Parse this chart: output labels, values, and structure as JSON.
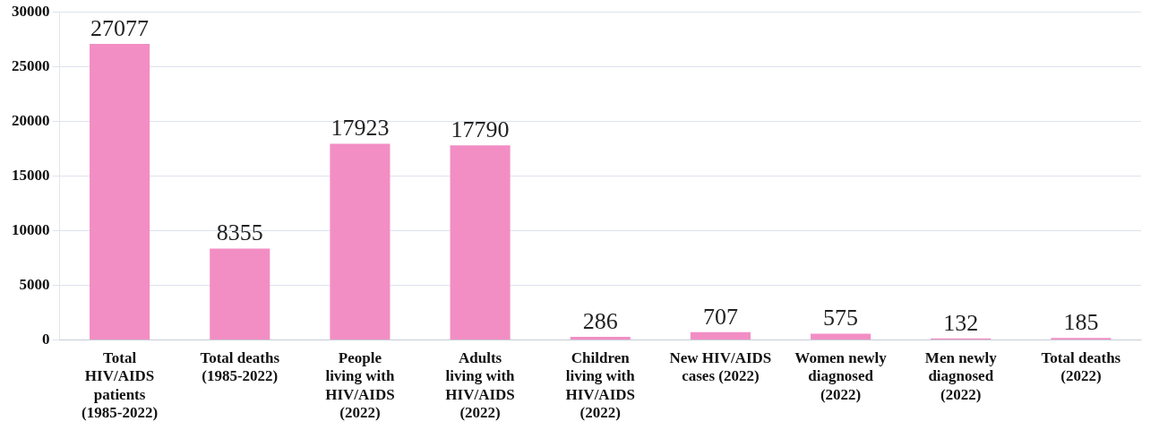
{
  "chart_data": {
    "type": "bar",
    "categories": [
      "Total HIV/AIDS patients (1985-2022)",
      "Total deaths (1985-2022)",
      "People living with HIV/AIDS (2022)",
      "Adults living with HIV/AIDS (2022)",
      "Children living with HIV/AIDS (2022)",
      "New HIV/AIDS cases (2022)",
      "Women newly diagnosed (2022)",
      "Men newly diagnosed (2022)",
      "Total deaths (2022)"
    ],
    "values": [
      27077,
      8355,
      17923,
      17790,
      286,
      707,
      575,
      132,
      185
    ],
    "color": "#f28ec4",
    "ylim": [
      0,
      30000
    ],
    "yticks": [
      0,
      5000,
      10000,
      15000,
      20000,
      25000,
      30000
    ],
    "grid": "y",
    "data_labels": true,
    "legend": false
  }
}
